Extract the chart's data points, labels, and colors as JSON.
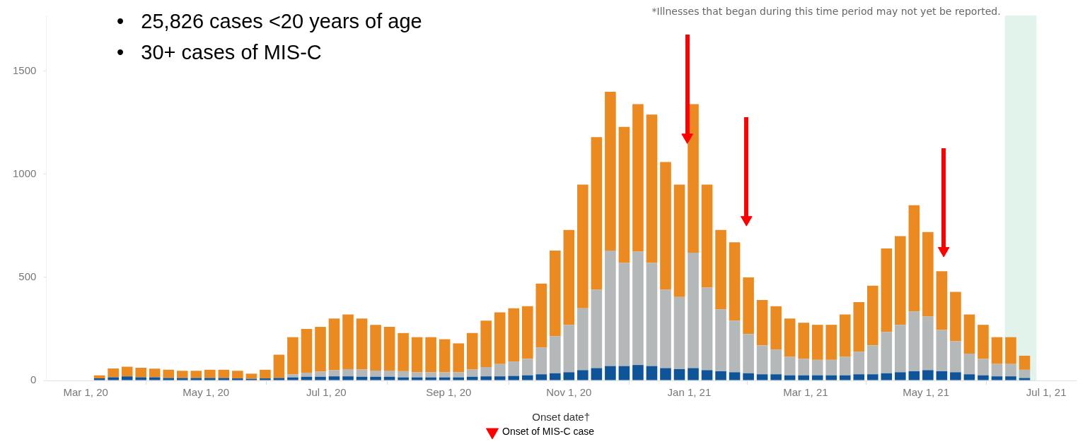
{
  "chart_data": {
    "type": "bar",
    "stacked": true,
    "xlabel": "Onset date†",
    "annotations": [
      "•   25,826 cases <20 years of age",
      "•   30+ cases of MIS-C"
    ],
    "x": [
      "2020-03-08",
      "2020-03-15",
      "2020-03-22",
      "2020-03-29",
      "2020-04-05",
      "2020-04-12",
      "2020-04-19",
      "2020-04-26",
      "2020-05-03",
      "2020-05-10",
      "2020-05-17",
      "2020-05-24",
      "2020-05-31",
      "2020-06-07",
      "2020-06-14",
      "2020-06-21",
      "2020-06-28",
      "2020-07-05",
      "2020-07-12",
      "2020-07-19",
      "2020-07-26",
      "2020-08-02",
      "2020-08-09",
      "2020-08-16",
      "2020-08-23",
      "2020-08-30",
      "2020-09-06",
      "2020-09-13",
      "2020-09-20",
      "2020-09-27",
      "2020-10-04",
      "2020-10-11",
      "2020-10-18",
      "2020-10-25",
      "2020-11-01",
      "2020-11-08",
      "2020-11-15",
      "2020-11-22",
      "2020-11-29",
      "2020-12-06",
      "2020-12-13",
      "2020-12-20",
      "2020-12-27",
      "2021-01-03",
      "2021-01-10",
      "2021-01-17",
      "2021-01-24",
      "2021-01-31",
      "2021-02-07",
      "2021-02-14",
      "2021-02-21",
      "2021-02-28",
      "2021-03-07",
      "2021-03-14",
      "2021-03-21",
      "2021-03-28",
      "2021-04-04",
      "2021-04-11",
      "2021-04-18",
      "2021-04-25",
      "2021-05-02",
      "2021-05-09",
      "2021-05-16",
      "2021-05-23",
      "2021-05-30",
      "2021-06-06",
      "2021-06-13",
      "2021-06-20"
    ],
    "series": [
      {
        "color": "#0f5499",
        "values": [
          10,
          15,
          20,
          15,
          15,
          12,
          12,
          12,
          12,
          12,
          10,
          8,
          10,
          12,
          15,
          18,
          18,
          20,
          20,
          18,
          18,
          18,
          15,
          15,
          15,
          15,
          15,
          18,
          20,
          20,
          22,
          25,
          30,
          35,
          40,
          50,
          60,
          70,
          70,
          75,
          70,
          60,
          55,
          60,
          50,
          45,
          40,
          35,
          30,
          30,
          25,
          25,
          25,
          25,
          25,
          30,
          30,
          35,
          40,
          45,
          50,
          45,
          40,
          30,
          25,
          20,
          20,
          12
        ]
      },
      {
        "color": "#b5b8b9",
        "values": [
          null,
          null,
          null,
          null,
          null,
          null,
          null,
          null,
          null,
          null,
          null,
          null,
          null,
          null,
          15,
          20,
          25,
          30,
          35,
          35,
          30,
          30,
          30,
          25,
          25,
          25,
          25,
          35,
          45,
          60,
          70,
          80,
          130,
          180,
          230,
          300,
          380,
          560,
          500,
          550,
          500,
          380,
          350,
          560,
          400,
          300,
          250,
          190,
          140,
          120,
          90,
          80,
          75,
          75,
          90,
          110,
          140,
          200,
          230,
          290,
          260,
          200,
          150,
          100,
          80,
          60,
          60,
          40
        ]
      },
      {
        "color": "#ec8a22",
        "values": [
          15,
          43,
          47,
          47,
          42,
          40,
          35,
          35,
          40,
          40,
          37,
          25,
          42,
          113,
          180,
          212,
          217,
          250,
          265,
          247,
          222,
          212,
          185,
          170,
          170,
          160,
          140,
          177,
          225,
          250,
          258,
          255,
          310,
          415,
          460,
          600,
          740,
          770,
          660,
          715,
          720,
          620,
          545,
          720,
          500,
          385,
          380,
          275,
          220,
          210,
          185,
          175,
          170,
          170,
          205,
          240,
          290,
          405,
          430,
          515,
          410,
          285,
          240,
          190,
          165,
          130,
          130,
          68
        ]
      },
      {
        "type": "scatter",
        "name": "Onset of MIS-C case",
        "color": "#ff0000",
        "x": [
          "2020-12-31",
          "2021-01-30",
          "2021-05-10"
        ],
        "values": [
          1180,
          780,
          630
        ]
      }
    ],
    "marker": "triangle",
    "xlim": [
      "2020-02-10",
      "2021-07-16"
    ],
    "xticks": [
      {
        "value": "2020-03-01",
        "label": "Mar 1, 20"
      },
      {
        "value": "2020-05-01",
        "label": "May 1, 20"
      },
      {
        "value": "2020-07-01",
        "label": "Jul 1, 20"
      },
      {
        "value": "2020-09-01",
        "label": "Sep 1, 20"
      },
      {
        "value": "2020-11-01",
        "label": "Nov 1, 20"
      },
      {
        "value": "2021-01-01",
        "label": "Jan 1, 21"
      },
      {
        "value": "2021-03-01",
        "label": "Mar 1, 21"
      },
      {
        "value": "2021-05-01",
        "label": "May 1, 21"
      },
      {
        "value": "2021-07-01",
        "label": "Jul 1, 21"
      }
    ],
    "ylim": [
      0,
      1770
    ],
    "yticks": [
      0,
      500,
      1000,
      1500
    ],
    "bands": [
      {
        "axis": "x",
        "from": "2021-06-10",
        "to": "2021-06-26",
        "label": "*Illnesses that began during this time period may not yet be reported.",
        "color": "#e1f3ea"
      }
    ],
    "legend": "bottom"
  }
}
